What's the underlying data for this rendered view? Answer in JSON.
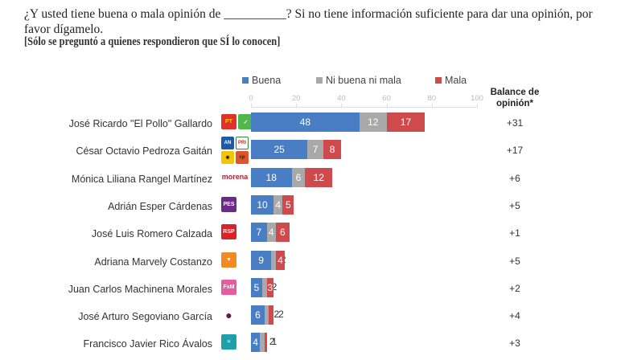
{
  "question": "¿Y usted tiene buena o mala opinión de __________? Si no tiene información suficiente para dar una opinión, por favor dígamelo.",
  "note": "[Sólo se preguntó a quienes respondieron que SÍ lo conocen]",
  "balance_header": "Balance de opinión*",
  "colors": {
    "buena": "#4a7ec4",
    "ni": "#a9a9a9",
    "mala": "#cf4a4d"
  },
  "chart_data": {
    "type": "bar",
    "orientation": "horizontal-stacked",
    "title": "",
    "xlabel": "",
    "ylabel": "",
    "xlim": [
      0,
      100
    ],
    "x_ticks": [
      "0",
      "20",
      "40",
      "60",
      "80",
      "100"
    ],
    "legend": [
      "Buena",
      "Ni buena ni mala",
      "Mala"
    ],
    "legend_position": "top",
    "categories": [
      "José Ricardo \"El Pollo\" Gallardo",
      "César Octavio Pedroza Gaitán",
      "Mónica Liliana Rangel Martínez",
      "Adrián Esper Cárdenas",
      "José Luis Romero Calzada",
      "Adriana Marvely Costanzo",
      "Juan Carlos Machinena Morales",
      "José Arturo Segoviano García",
      "Francisco Javier Rico Ávalos"
    ],
    "series": [
      {
        "name": "Buena",
        "values": [
          48,
          25,
          18,
          10,
          7,
          9,
          5,
          6,
          4
        ]
      },
      {
        "name": "Ni buena ni mala",
        "values": [
          12,
          7,
          6,
          4,
          4,
          2,
          2,
          2,
          2
        ]
      },
      {
        "name": "Mala",
        "values": [
          17,
          8,
          12,
          5,
          6,
          4,
          3,
          2,
          1
        ]
      }
    ],
    "balance": [
      "+31",
      "+17",
      "+6",
      "+5",
      "+1",
      "+5",
      "+2",
      "+4",
      "+3"
    ]
  },
  "party_logos": [
    [
      "PT",
      "VERDE"
    ],
    [
      "PAN",
      "PRI",
      "PRD",
      "CP"
    ],
    [
      "morena"
    ],
    [
      "PES"
    ],
    [
      "RSP"
    ],
    [
      "MC"
    ],
    [
      "FxM"
    ],
    [
      "independiente"
    ],
    [
      "NA"
    ]
  ]
}
